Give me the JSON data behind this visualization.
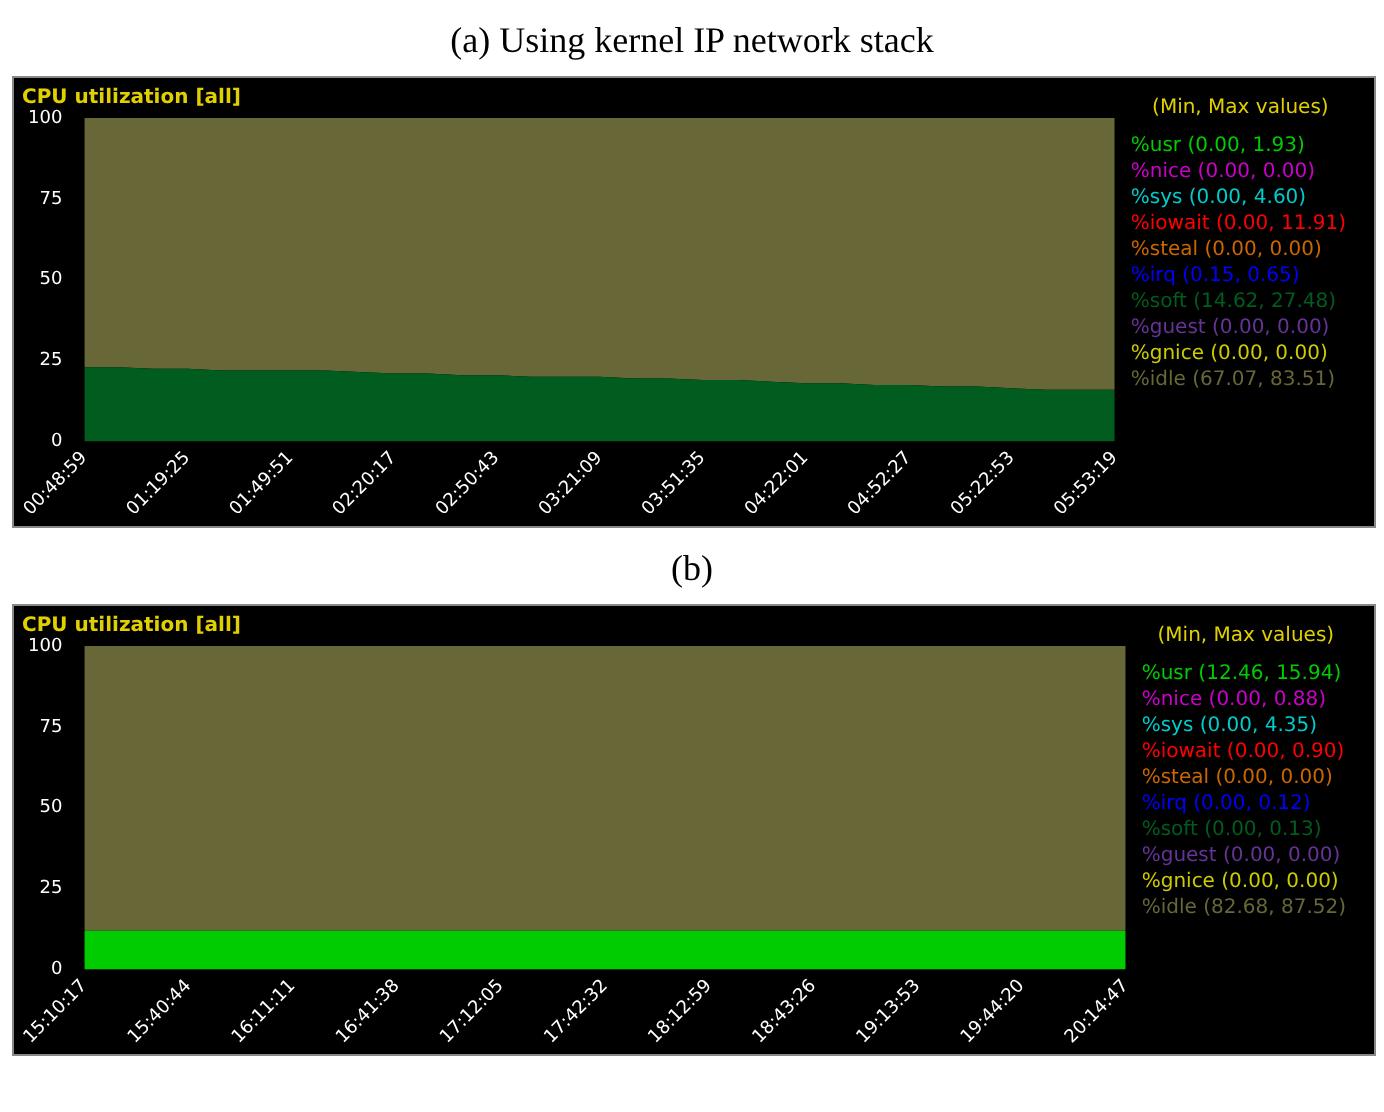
{
  "chart_data": [
    {
      "type": "area",
      "title": "(a) Using kernel IP network stack",
      "subtitle": "CPU utilization [all]",
      "legend_title": "(Min, Max values)",
      "legend": "right",
      "stacked": true,
      "categories": [
        "00:48:59",
        null,
        null,
        "01:19:25",
        null,
        null,
        "01:49:51",
        null,
        null,
        "02:20:17",
        null,
        null,
        "02:50:43",
        null,
        null,
        "03:21:09",
        null,
        null,
        "03:51:35",
        null,
        null,
        "04:22:01",
        null,
        null,
        "04:52:27",
        null,
        null,
        "05:22:53",
        null,
        null,
        "05:53:19"
      ],
      "ylim": [
        0,
        100
      ],
      "yticks": [
        0,
        25,
        50,
        75,
        100
      ],
      "series": [
        {
          "name": "%usr (0.00, 1.93)",
          "color": "#00cc00",
          "values": [
            null,
            null,
            null,
            null,
            null,
            null,
            null,
            null,
            null,
            null,
            null,
            null,
            null,
            null,
            null,
            null,
            null,
            null,
            null,
            null,
            null,
            null,
            null,
            null,
            null,
            null,
            null,
            null,
            null,
            null,
            null
          ]
        },
        {
          "name": "%nice (0.00, 0.00)",
          "color": "#cc00cc",
          "values": [
            null,
            null,
            null,
            null,
            null,
            null,
            null,
            null,
            null,
            null,
            null,
            null,
            null,
            null,
            null,
            null,
            null,
            null,
            null,
            null,
            null,
            null,
            null,
            null,
            null,
            null,
            null,
            null,
            null,
            null,
            null
          ]
        },
        {
          "name": "%sys (0.00, 4.60)",
          "color": "#00cccc",
          "values": [
            null,
            null,
            null,
            null,
            null,
            null,
            null,
            null,
            null,
            null,
            null,
            null,
            null,
            null,
            null,
            null,
            null,
            null,
            null,
            null,
            null,
            null,
            null,
            null,
            null,
            null,
            null,
            null,
            null,
            null,
            null
          ]
        },
        {
          "name": "%iowait (0.00, 11.91)",
          "color": "#ff0000",
          "values": [
            null,
            null,
            null,
            null,
            null,
            null,
            null,
            null,
            null,
            null,
            null,
            null,
            null,
            null,
            null,
            null,
            null,
            null,
            null,
            null,
            null,
            null,
            null,
            null,
            null,
            null,
            null,
            null,
            null,
            null,
            null
          ]
        },
        {
          "name": "%steal (0.00, 0.00)",
          "color": "#cc6600",
          "values": [
            null,
            null,
            null,
            null,
            null,
            null,
            null,
            null,
            null,
            null,
            null,
            null,
            null,
            null,
            null,
            null,
            null,
            null,
            null,
            null,
            null,
            null,
            null,
            null,
            null,
            null,
            null,
            null,
            null,
            null,
            null
          ]
        },
        {
          "name": "%irq (0.15, 0.65)",
          "color": "#0000ff",
          "values": [
            null,
            null,
            null,
            null,
            null,
            null,
            null,
            null,
            null,
            null,
            null,
            null,
            null,
            null,
            null,
            null,
            null,
            null,
            null,
            null,
            null,
            null,
            null,
            null,
            null,
            null,
            null,
            null,
            null,
            null,
            null
          ]
        },
        {
          "name": "%soft (14.62, 27.48)",
          "color": "#005c1f",
          "values": [
            23,
            23,
            22.5,
            22.5,
            22,
            22,
            22,
            22,
            21.5,
            21,
            21,
            20.5,
            20.5,
            20,
            20,
            20,
            19.5,
            19.5,
            19,
            19,
            18.5,
            18,
            18,
            17.5,
            17.5,
            17,
            17,
            16.5,
            16,
            16,
            16
          ]
        },
        {
          "name": "%guest (0.00, 0.00)",
          "color": "#663399",
          "values": [
            null,
            null,
            null,
            null,
            null,
            null,
            null,
            null,
            null,
            null,
            null,
            null,
            null,
            null,
            null,
            null,
            null,
            null,
            null,
            null,
            null,
            null,
            null,
            null,
            null,
            null,
            null,
            null,
            null,
            null,
            null
          ]
        },
        {
          "name": "%gnice (0.00, 0.00)",
          "color": "#cccc00",
          "values": [
            null,
            null,
            null,
            null,
            null,
            null,
            null,
            null,
            null,
            null,
            null,
            null,
            null,
            null,
            null,
            null,
            null,
            null,
            null,
            null,
            null,
            null,
            null,
            null,
            null,
            null,
            null,
            null,
            null,
            null,
            null
          ]
        },
        {
          "name": "%idle (67.07, 83.51)",
          "color": "#686738",
          "values": [
            77,
            77,
            77.5,
            77.5,
            78,
            78,
            78,
            78,
            78.5,
            79,
            79,
            79.5,
            79.5,
            80,
            80,
            80,
            80.5,
            80.5,
            81,
            81,
            81.5,
            82,
            82,
            82.5,
            82.5,
            83,
            83,
            83.5,
            84,
            84,
            84
          ]
        }
      ]
    },
    {
      "type": "area",
      "title": "(b)",
      "subtitle": "CPU utilization [all]",
      "legend_title": "(Min, Max values)",
      "legend": "right",
      "stacked": true,
      "categories": [
        "15:10:17",
        null,
        null,
        "15:40:44",
        null,
        null,
        "16:11:11",
        null,
        null,
        "16:41:38",
        null,
        null,
        "17:12:05",
        null,
        null,
        "17:42:32",
        null,
        null,
        "18:12:59",
        null,
        null,
        "18:43:26",
        null,
        null,
        "19:13:53",
        null,
        null,
        "19:44:20",
        null,
        null,
        "20:14:47"
      ],
      "ylim": [
        0,
        100
      ],
      "yticks": [
        0,
        25,
        50,
        75,
        100
      ],
      "series": [
        {
          "name": "%usr (12.46, 15.94)",
          "color": "#00cc00",
          "values": [
            12,
            12,
            12,
            12,
            12,
            12,
            12,
            12,
            12,
            12,
            12,
            12,
            12,
            12,
            12,
            12,
            12,
            12,
            12,
            12,
            12,
            12,
            12,
            12,
            12,
            12,
            12,
            12,
            12,
            12,
            12
          ]
        },
        {
          "name": "%nice (0.00, 0.88)",
          "color": "#cc00cc",
          "values": [
            null,
            null,
            null,
            null,
            null,
            null,
            null,
            null,
            null,
            null,
            null,
            null,
            null,
            null,
            null,
            null,
            null,
            null,
            null,
            null,
            null,
            null,
            null,
            null,
            null,
            null,
            null,
            null,
            null,
            null,
            null
          ]
        },
        {
          "name": "%sys (0.00, 4.35)",
          "color": "#00cccc",
          "values": [
            null,
            null,
            null,
            null,
            null,
            null,
            null,
            null,
            null,
            null,
            null,
            null,
            null,
            null,
            null,
            null,
            null,
            null,
            null,
            null,
            null,
            null,
            null,
            null,
            null,
            null,
            null,
            null,
            null,
            null,
            null
          ]
        },
        {
          "name": "%iowait (0.00, 0.90)",
          "color": "#ff0000",
          "values": [
            null,
            null,
            null,
            null,
            null,
            null,
            null,
            null,
            null,
            null,
            null,
            null,
            null,
            null,
            null,
            null,
            null,
            null,
            null,
            null,
            null,
            null,
            null,
            null,
            null,
            null,
            null,
            null,
            null,
            null,
            null
          ]
        },
        {
          "name": "%steal (0.00, 0.00)",
          "color": "#cc6600",
          "values": [
            null,
            null,
            null,
            null,
            null,
            null,
            null,
            null,
            null,
            null,
            null,
            null,
            null,
            null,
            null,
            null,
            null,
            null,
            null,
            null,
            null,
            null,
            null,
            null,
            null,
            null,
            null,
            null,
            null,
            null,
            null
          ]
        },
        {
          "name": "%irq (0.00, 0.12)",
          "color": "#0000ff",
          "values": [
            null,
            null,
            null,
            null,
            null,
            null,
            null,
            null,
            null,
            null,
            null,
            null,
            null,
            null,
            null,
            null,
            null,
            null,
            null,
            null,
            null,
            null,
            null,
            null,
            null,
            null,
            null,
            null,
            null,
            null,
            null
          ]
        },
        {
          "name": "%soft (0.00, 0.13)",
          "color": "#005c1f",
          "values": [
            null,
            null,
            null,
            null,
            null,
            null,
            null,
            null,
            null,
            null,
            null,
            null,
            null,
            null,
            null,
            null,
            null,
            null,
            null,
            null,
            null,
            null,
            null,
            null,
            null,
            null,
            null,
            null,
            null,
            null,
            null
          ]
        },
        {
          "name": "%guest (0.00, 0.00)",
          "color": "#663399",
          "values": [
            null,
            null,
            null,
            null,
            null,
            null,
            null,
            null,
            null,
            null,
            null,
            null,
            null,
            null,
            null,
            null,
            null,
            null,
            null,
            null,
            null,
            null,
            null,
            null,
            null,
            null,
            null,
            null,
            null,
            null,
            null
          ]
        },
        {
          "name": "%gnice (0.00, 0.00)",
          "color": "#cccc00",
          "values": [
            null,
            null,
            null,
            null,
            null,
            null,
            null,
            null,
            null,
            null,
            null,
            null,
            null,
            null,
            null,
            null,
            null,
            null,
            null,
            null,
            null,
            null,
            null,
            null,
            null,
            null,
            null,
            null,
            null,
            null,
            null
          ]
        },
        {
          "name": "%idle (82.68, 87.52)",
          "color": "#686738",
          "values": [
            88,
            88,
            88,
            88,
            88,
            88,
            88,
            88,
            88,
            88,
            88,
            88,
            88,
            88,
            88,
            88,
            88,
            88,
            88,
            88,
            88,
            88,
            88,
            88,
            88,
            88,
            88,
            88,
            88,
            88,
            88
          ]
        }
      ]
    }
  ]
}
